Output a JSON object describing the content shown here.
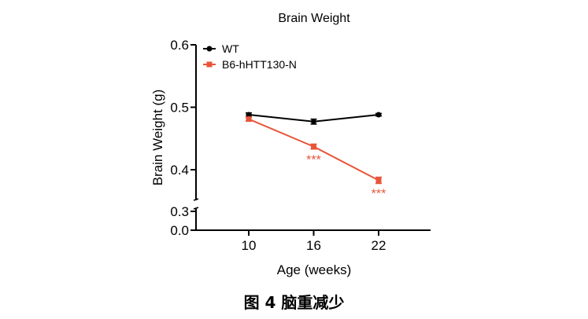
{
  "chart_data": {
    "type": "line",
    "title": "Brain Weight",
    "xlabel": "Age (weeks)",
    "ylabel": "Brain Weight (g)",
    "x": [
      10,
      16,
      22
    ],
    "x_ticks": [
      "10",
      "16",
      "22"
    ],
    "y_ticks": [
      "0.0",
      "0.3",
      "0.4",
      "0.5",
      "0.6"
    ],
    "y_axis_break": [
      0.3,
      0.4
    ],
    "ylim": [
      0,
      0.6
    ],
    "grid": false,
    "legend_position": "top-left",
    "series": [
      {
        "name": "WT",
        "color": "#000000",
        "marker": "circle",
        "values": [
          0.488,
          0.477,
          0.488
        ],
        "errors": [
          0.003,
          0.004,
          0.002
        ],
        "annotations": [
          "",
          "",
          ""
        ]
      },
      {
        "name": "B6-hHTT130-N",
        "color": "#e8553a",
        "marker": "square",
        "values": [
          0.481,
          0.437,
          0.383
        ],
        "errors": [
          0.003,
          0.004,
          0.005
        ],
        "annotations": [
          "",
          "***",
          "***"
        ]
      }
    ]
  },
  "caption": "图 4 脑重减少"
}
